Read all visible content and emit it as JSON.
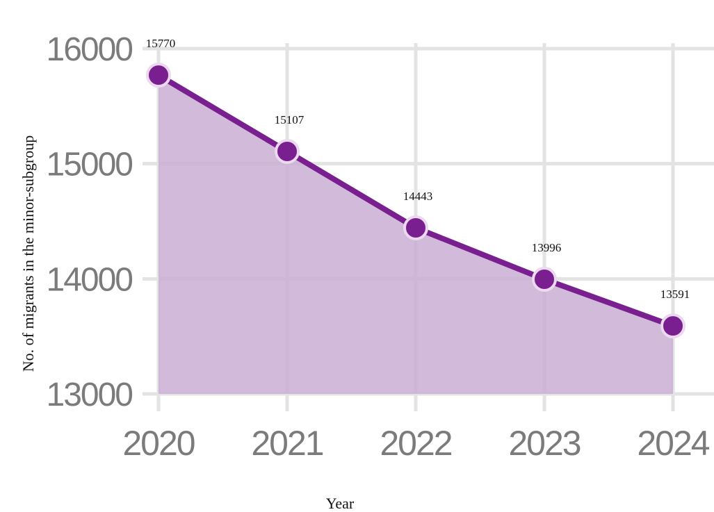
{
  "chart_data": {
    "type": "area",
    "x": [
      "2020",
      "2021",
      "2022",
      "2023",
      "2024"
    ],
    "values": [
      15770,
      15107,
      14443,
      13996,
      13591
    ],
    "data_labels": [
      "15770",
      "15107",
      "14443",
      "13996",
      "13591"
    ],
    "xlabel": "Year",
    "ylabel": "No. of migrants in the minor-subgroup",
    "ylim": [
      13000,
      16000
    ],
    "y_ticks": [
      "13000",
      "14000",
      "15000",
      "16000"
    ],
    "grid": true,
    "colors": {
      "line": "#7a1f8f",
      "fill": "#c9aed4",
      "grid": "#e3e3e3"
    }
  }
}
